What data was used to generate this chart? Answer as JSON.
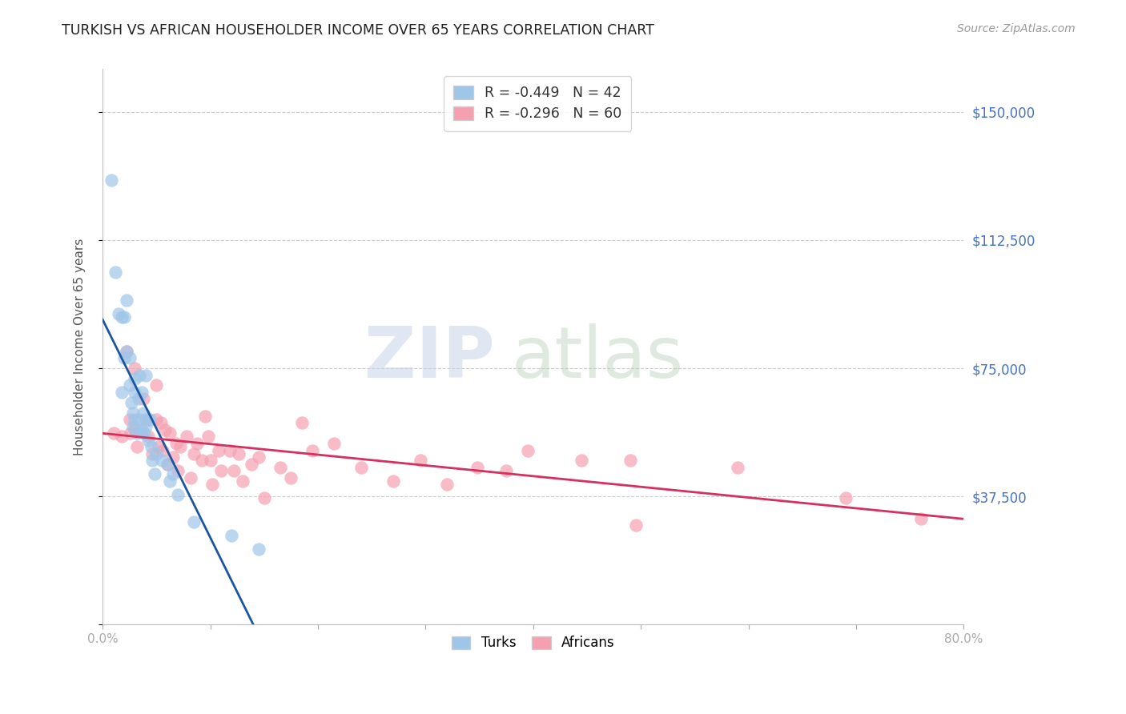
{
  "title": "TURKISH VS AFRICAN HOUSEHOLDER INCOME OVER 65 YEARS CORRELATION CHART",
  "source": "Source: ZipAtlas.com",
  "ylabel": "Householder Income Over 65 years",
  "xmin": 0.0,
  "xmax": 0.8,
  "ymin": 0,
  "ymax": 162500,
  "yticks": [
    0,
    37500,
    75000,
    112500,
    150000
  ],
  "ytick_labels_right": [
    "",
    "$37,500",
    "$75,000",
    "$112,500",
    "$150,000"
  ],
  "xtick_positions": [
    0.0,
    0.1,
    0.2,
    0.3,
    0.4,
    0.5,
    0.6,
    0.7,
    0.8
  ],
  "xtick_labels": [
    "0.0%",
    "",
    "",
    "",
    "",
    "",
    "",
    "",
    "80.0%"
  ],
  "blue_R": -0.449,
  "blue_N": 42,
  "pink_R": -0.296,
  "pink_N": 60,
  "blue_dot_color": "#9fc5e8",
  "pink_dot_color": "#f4a0b0",
  "blue_line_color": "#1a56a0",
  "pink_line_color": "#d63060",
  "dash_color": "#bbbbbb",
  "right_label_color": "#4472c4",
  "bg_color": "#ffffff",
  "turks_x": [
    0.008,
    0.012,
    0.015,
    0.018,
    0.018,
    0.02,
    0.02,
    0.022,
    0.022,
    0.025,
    0.025,
    0.027,
    0.028,
    0.028,
    0.03,
    0.03,
    0.03,
    0.032,
    0.033,
    0.034,
    0.034,
    0.036,
    0.036,
    0.038,
    0.038,
    0.04,
    0.04,
    0.042,
    0.042,
    0.044,
    0.045,
    0.046,
    0.048,
    0.05,
    0.055,
    0.06,
    0.062,
    0.065,
    0.07,
    0.085,
    0.12,
    0.145
  ],
  "turks_y": [
    130000,
    103000,
    91000,
    90000,
    68000,
    90000,
    78000,
    95000,
    80000,
    78000,
    70000,
    65000,
    62000,
    58000,
    72000,
    68000,
    60000,
    56000,
    66000,
    73000,
    60000,
    68000,
    57000,
    62000,
    56000,
    73000,
    58000,
    60000,
    54000,
    60000,
    52000,
    48000,
    44000,
    50000,
    48000,
    47000,
    42000,
    44000,
    38000,
    30000,
    26000,
    22000
  ],
  "africans_x": [
    0.01,
    0.018,
    0.022,
    0.025,
    0.026,
    0.03,
    0.03,
    0.032,
    0.038,
    0.04,
    0.042,
    0.046,
    0.05,
    0.05,
    0.052,
    0.054,
    0.056,
    0.058,
    0.06,
    0.062,
    0.065,
    0.068,
    0.07,
    0.072,
    0.078,
    0.082,
    0.085,
    0.088,
    0.092,
    0.095,
    0.098,
    0.1,
    0.102,
    0.108,
    0.11,
    0.118,
    0.122,
    0.126,
    0.13,
    0.138,
    0.145,
    0.15,
    0.165,
    0.175,
    0.185,
    0.195,
    0.215,
    0.24,
    0.27,
    0.295,
    0.32,
    0.348,
    0.375,
    0.395,
    0.445,
    0.49,
    0.495,
    0.59,
    0.69,
    0.76
  ],
  "africans_y": [
    56000,
    55000,
    80000,
    60000,
    56000,
    75000,
    57000,
    52000,
    66000,
    60000,
    55000,
    50000,
    70000,
    60000,
    52000,
    59000,
    51000,
    57000,
    47000,
    56000,
    49000,
    53000,
    45000,
    52000,
    55000,
    43000,
    50000,
    53000,
    48000,
    61000,
    55000,
    48000,
    41000,
    51000,
    45000,
    51000,
    45000,
    50000,
    42000,
    47000,
    49000,
    37000,
    46000,
    43000,
    59000,
    51000,
    53000,
    46000,
    42000,
    48000,
    41000,
    46000,
    45000,
    51000,
    48000,
    48000,
    29000,
    46000,
    37000,
    31000
  ],
  "blue_line_x0": 0.0,
  "blue_line_x_solid_end": 0.155,
  "blue_line_x_dash_end": 0.42,
  "pink_line_x0": 0.0,
  "pink_line_x1": 0.8
}
